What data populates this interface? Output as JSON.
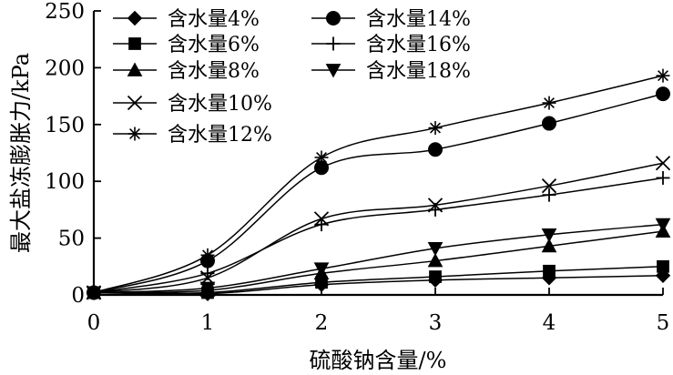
{
  "chart_data": {
    "type": "line",
    "xlabel": "硫酸钠含量/%",
    "ylabel": "最大盐冻膨胀力/kPa",
    "x": [
      0,
      1,
      2,
      3,
      4,
      5
    ],
    "xlim": [
      0,
      5
    ],
    "ylim": [
      0,
      250
    ],
    "x_ticks": [
      0,
      1,
      2,
      3,
      4,
      5
    ],
    "y_ticks": [
      0,
      50,
      100,
      150,
      200,
      250
    ],
    "grid": false,
    "legend_position": "top-left",
    "series": [
      {
        "name": "含水量4%",
        "marker": "diamond",
        "values": [
          2,
          1,
          9,
          13,
          15,
          17
        ]
      },
      {
        "name": "含水量6%",
        "marker": "square",
        "values": [
          2,
          2,
          11,
          16,
          21,
          25
        ]
      },
      {
        "name": "含水量8%",
        "marker": "triangle-up",
        "values": [
          2,
          4,
          19,
          30,
          43,
          56
        ]
      },
      {
        "name": "含水量10%",
        "marker": "x",
        "values": [
          2,
          15,
          67,
          79,
          96,
          116
        ]
      },
      {
        "name": "含水量12%",
        "marker": "asterisk",
        "values": [
          2,
          35,
          121,
          147,
          169,
          193
        ]
      },
      {
        "name": "含水量14%",
        "marker": "circle",
        "values": [
          2,
          30,
          112,
          128,
          151,
          177
        ]
      },
      {
        "name": "含水量16%",
        "marker": "plus",
        "values": [
          2,
          19,
          62,
          75,
          88,
          103
        ]
      },
      {
        "name": "含水量18%",
        "marker": "triangle-down",
        "values": [
          2,
          6,
          23,
          41,
          53,
          62
        ]
      }
    ]
  }
}
